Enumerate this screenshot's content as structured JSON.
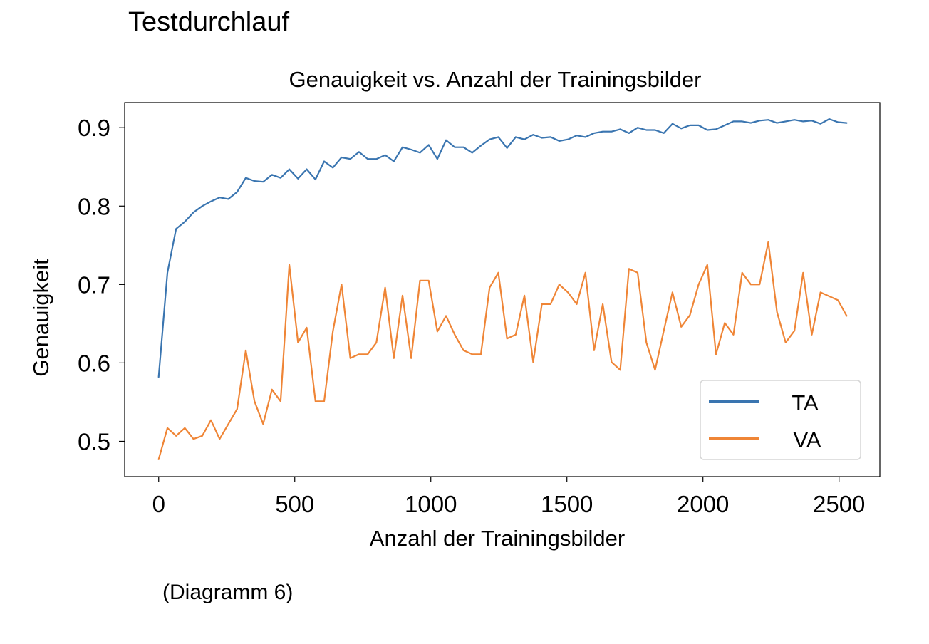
{
  "page": {
    "heading": "Testdurchlauf",
    "caption": "(Diagramm 6)"
  },
  "chart_data": {
    "type": "line",
    "title": "Genauigkeit vs. Anzahl der Trainingsbilder",
    "xlabel": "Anzahl der Trainingsbilder",
    "ylabel": "Genauigkeit",
    "xlim": [
      -125,
      2650
    ],
    "ylim": [
      0.455,
      0.932
    ],
    "xticks": [
      0,
      500,
      1000,
      1500,
      2000,
      2500
    ],
    "xtick_labels": [
      "0",
      "500",
      "1000",
      "1500",
      "2000",
      "2500"
    ],
    "yticks": [
      0.5,
      0.6,
      0.7,
      0.8,
      0.9
    ],
    "ytick_labels": [
      "0.5",
      "0.6",
      "0.7",
      "0.8",
      "0.9"
    ],
    "grid": false,
    "legend_position": "lower-right",
    "x": [
      0,
      32,
      64,
      96,
      128,
      160,
      192,
      224,
      256,
      288,
      320,
      352,
      384,
      416,
      448,
      480,
      512,
      544,
      576,
      608,
      640,
      672,
      704,
      736,
      768,
      800,
      832,
      864,
      896,
      928,
      960,
      992,
      1024,
      1056,
      1088,
      1120,
      1152,
      1184,
      1216,
      1248,
      1280,
      1312,
      1344,
      1376,
      1408,
      1440,
      1472,
      1504,
      1536,
      1568,
      1600,
      1632,
      1664,
      1696,
      1728,
      1760,
      1792,
      1824,
      1856,
      1888,
      1920,
      1952,
      1984,
      2016,
      2048,
      2080,
      2112,
      2144,
      2176,
      2208,
      2240,
      2272,
      2304,
      2336,
      2368,
      2400,
      2432,
      2464,
      2496,
      2528
    ],
    "series": [
      {
        "name": "TA",
        "color": "#3a75b0",
        "values": [
          0.582,
          0.715,
          0.771,
          0.78,
          0.792,
          0.8,
          0.806,
          0.811,
          0.809,
          0.818,
          0.836,
          0.832,
          0.831,
          0.84,
          0.836,
          0.847,
          0.835,
          0.847,
          0.834,
          0.857,
          0.849,
          0.862,
          0.86,
          0.869,
          0.86,
          0.86,
          0.865,
          0.857,
          0.875,
          0.872,
          0.868,
          0.878,
          0.86,
          0.884,
          0.875,
          0.875,
          0.868,
          0.877,
          0.885,
          0.888,
          0.874,
          0.888,
          0.885,
          0.891,
          0.887,
          0.888,
          0.883,
          0.885,
          0.89,
          0.888,
          0.893,
          0.895,
          0.895,
          0.898,
          0.893,
          0.9,
          0.897,
          0.897,
          0.893,
          0.905,
          0.899,
          0.903,
          0.903,
          0.897,
          0.898,
          0.903,
          0.908,
          0.908,
          0.906,
          0.909,
          0.91,
          0.906,
          0.908,
          0.91,
          0.908,
          0.909,
          0.905,
          0.911,
          0.907,
          0.906
        ]
      },
      {
        "name": "VA",
        "color": "#ef8536",
        "values": [
          0.477,
          0.517,
          0.507,
          0.517,
          0.503,
          0.507,
          0.527,
          0.503,
          0.522,
          0.541,
          0.616,
          0.551,
          0.522,
          0.566,
          0.551,
          0.725,
          0.626,
          0.645,
          0.551,
          0.551,
          0.64,
          0.7,
          0.606,
          0.611,
          0.611,
          0.626,
          0.696,
          0.606,
          0.686,
          0.606,
          0.705,
          0.705,
          0.64,
          0.66,
          0.636,
          0.616,
          0.611,
          0.611,
          0.696,
          0.715,
          0.631,
          0.636,
          0.686,
          0.601,
          0.675,
          0.675,
          0.7,
          0.69,
          0.675,
          0.715,
          0.616,
          0.675,
          0.601,
          0.591,
          0.72,
          0.715,
          0.626,
          0.591,
          0.641,
          0.69,
          0.646,
          0.661,
          0.7,
          0.725,
          0.611,
          0.651,
          0.636,
          0.715,
          0.7,
          0.7,
          0.754,
          0.665,
          0.626,
          0.641,
          0.715,
          0.636,
          0.69,
          0.685,
          0.68,
          0.66
        ]
      }
    ]
  }
}
